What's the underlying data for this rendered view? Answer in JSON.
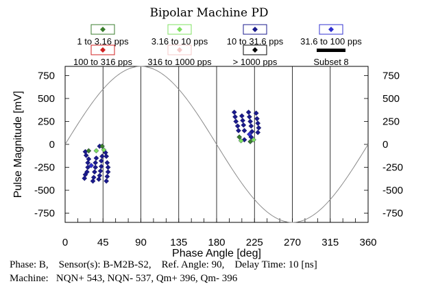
{
  "chart_data": {
    "type": "scatter",
    "title": "Bipolar Machine PD",
    "xlabel": "Phase Angle [deg]",
    "ylabel": "Pulse Magnitude [mV]",
    "xlim": [
      0,
      360
    ],
    "ylim": [
      -850,
      850
    ],
    "x_ticks": [
      0,
      45,
      90,
      135,
      180,
      225,
      270,
      315,
      360
    ],
    "y_ticks": [
      750,
      500,
      250,
      0,
      -250,
      -500,
      -750
    ],
    "reference_sine": {
      "amplitude": 850,
      "period_deg": 360,
      "peak_deg": 90
    },
    "legend": [
      {
        "label": "1 to 3.16 pps",
        "color": "#3a7d2c",
        "marker": "diamond"
      },
      {
        "label": "3.16 to 10 pps",
        "color": "#7fe060",
        "marker": "diamond"
      },
      {
        "label": "10 to 31.6 pps",
        "color": "#1a1a8c",
        "marker": "diamond"
      },
      {
        "label": "31.6 to 100 pps",
        "color": "#3030d0",
        "marker": "diamond"
      },
      {
        "label": "100 to 316 pps",
        "color": "#d02020",
        "marker": "diamond"
      },
      {
        "label": "316 to 1000 pps",
        "color": "#f5c8c8",
        "marker": "diamond"
      },
      {
        "label": "> 1000 pps",
        "color": "#000000",
        "marker": "diamond"
      },
      {
        "label": "Subset 8",
        "color": "#000000",
        "marker": "line"
      }
    ],
    "series": [
      {
        "name": "10 to 31.6 pps",
        "color": "#1a1a8c",
        "points": [
          [
            23,
            -370
          ],
          [
            24,
            -330
          ],
          [
            26,
            -300
          ],
          [
            27,
            -250
          ],
          [
            27,
            -200
          ],
          [
            28,
            -160
          ],
          [
            25,
            -120
          ],
          [
            24,
            -80
          ],
          [
            33,
            -400
          ],
          [
            34,
            -360
          ],
          [
            35,
            -300
          ],
          [
            36,
            -250
          ],
          [
            36,
            -200
          ],
          [
            37,
            -150
          ],
          [
            40,
            -380
          ],
          [
            41,
            -340
          ],
          [
            42,
            -290
          ],
          [
            43,
            -240
          ],
          [
            43,
            -180
          ],
          [
            44,
            -130
          ],
          [
            41,
            -20
          ],
          [
            49,
            -400
          ],
          [
            50,
            -350
          ],
          [
            51,
            -300
          ],
          [
            51,
            -250
          ],
          [
            50,
            -200
          ],
          [
            49,
            -130
          ],
          [
            48,
            -90
          ],
          [
            201,
            350
          ],
          [
            202,
            300
          ],
          [
            203,
            250
          ],
          [
            205,
            200
          ],
          [
            206,
            150
          ],
          [
            210,
            310
          ],
          [
            211,
            260
          ],
          [
            212,
            210
          ],
          [
            213,
            150
          ],
          [
            213,
            50
          ],
          [
            218,
            350
          ],
          [
            219,
            300
          ],
          [
            220,
            250
          ],
          [
            221,
            200
          ],
          [
            222,
            140
          ],
          [
            221,
            80
          ],
          [
            227,
            340
          ],
          [
            228,
            280
          ],
          [
            229,
            230
          ],
          [
            230,
            180
          ],
          [
            229,
            130
          ]
        ]
      },
      {
        "name": "1 to 3.16 pps",
        "color": "#3a7d2c",
        "points": [
          [
            28,
            -70
          ],
          [
            44,
            -20
          ],
          [
            207,
            80
          ],
          [
            220,
            30
          ]
        ]
      },
      {
        "name": "3.16 to 10 pps",
        "color": "#7fe060",
        "points": [
          [
            37,
            -70
          ],
          [
            46,
            -60
          ],
          [
            209,
            40
          ],
          [
            224,
            50
          ]
        ]
      },
      {
        "name": "31.6 to 100 pps",
        "color": "#3030d0",
        "points": [
          [
            31,
            -230
          ],
          [
            219,
            110
          ]
        ]
      }
    ]
  },
  "footer": {
    "line1": "Phase: B,    Sensor(s): B-M2B-S2,    Ref. Angle: 90,    Delay Time: 10 [ns]",
    "line2": "Machine:   NQN+ 543, NQN- 537, Qm+ 396, Qm- 396"
  }
}
